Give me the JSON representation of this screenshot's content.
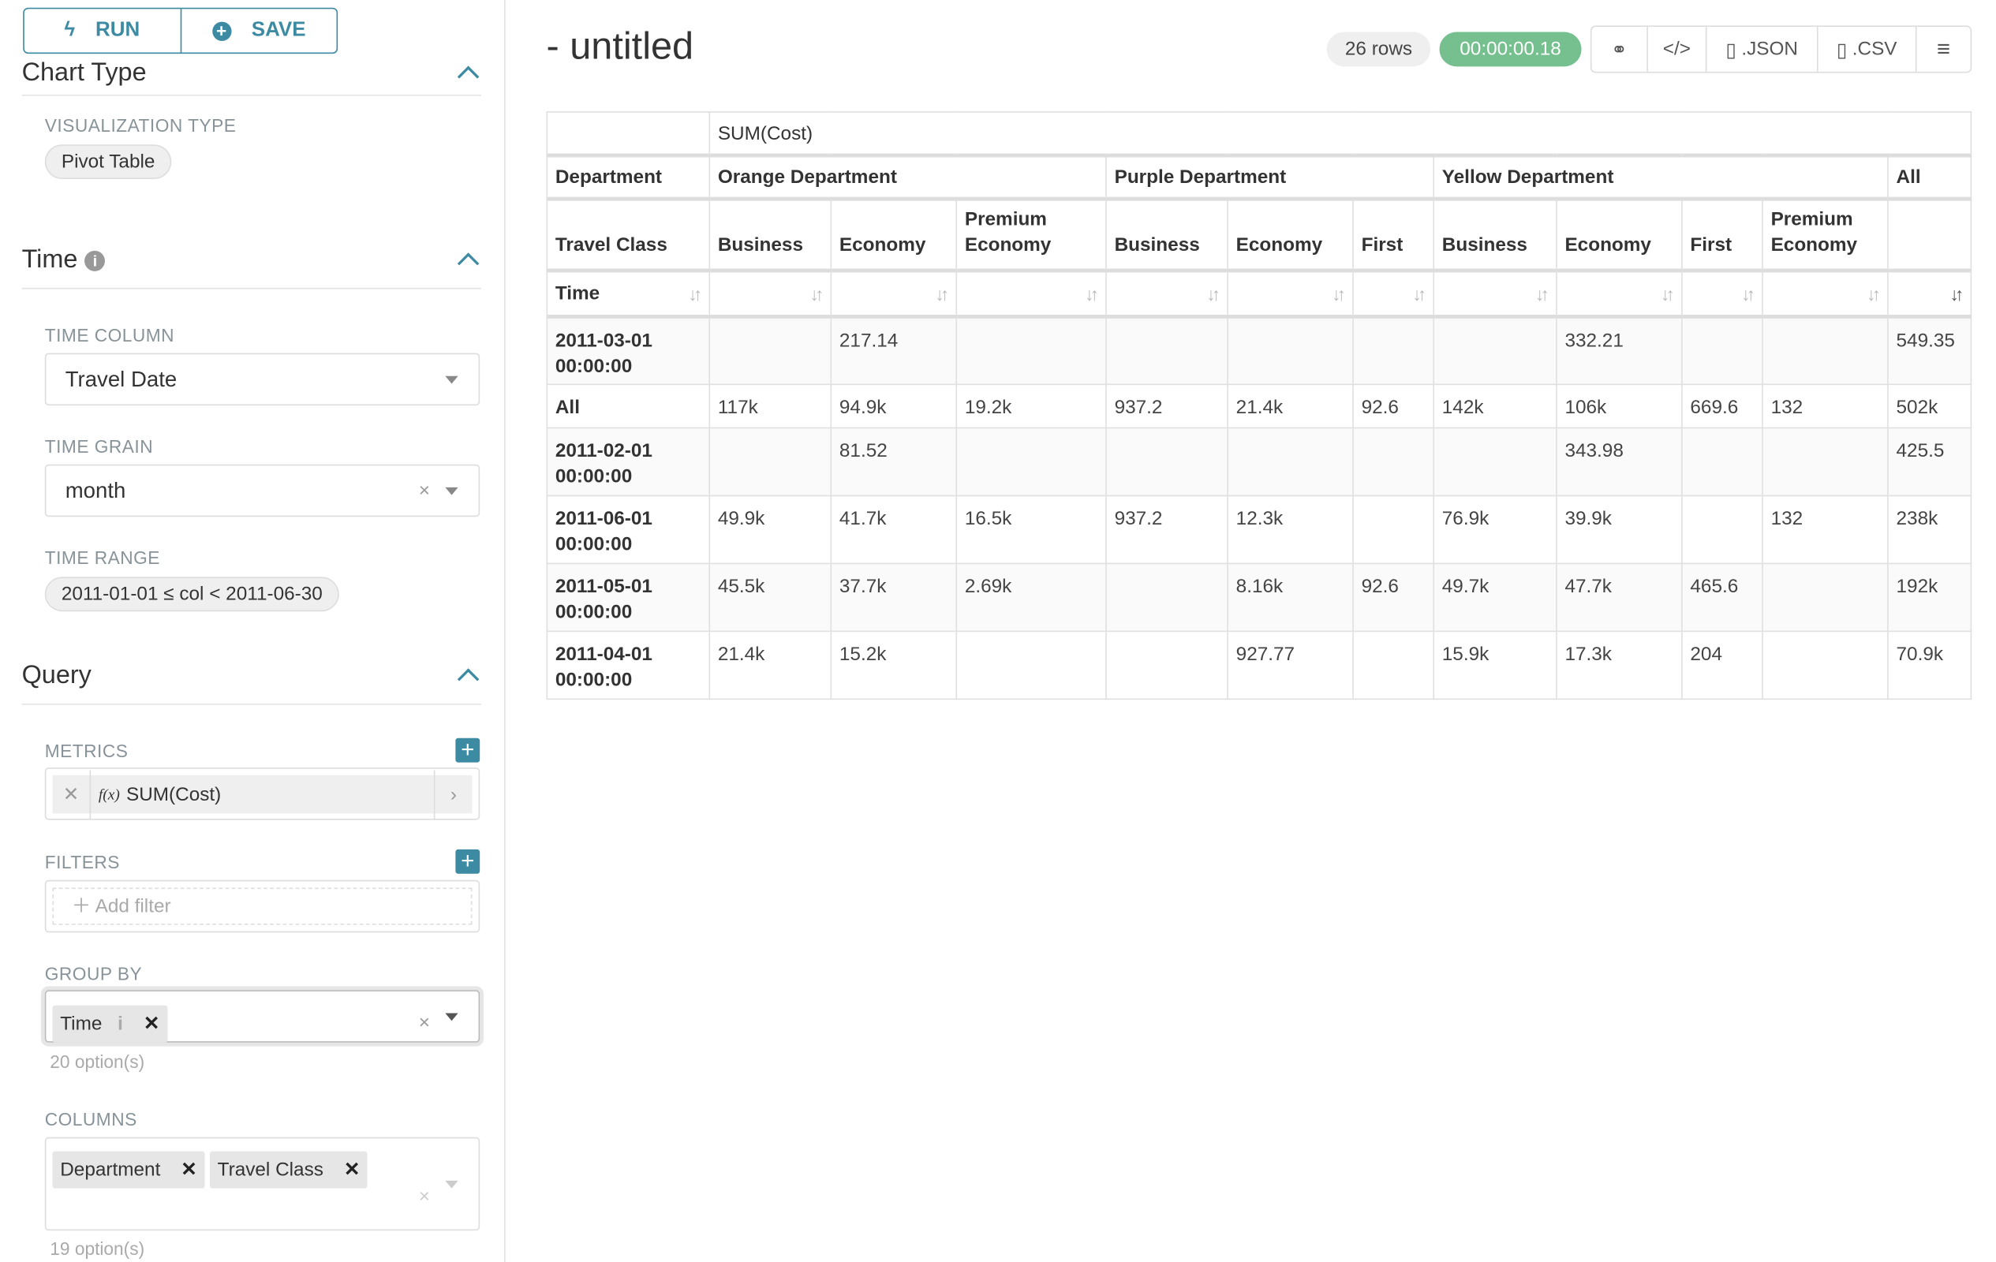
{
  "sidebar": {
    "run_label": "RUN",
    "save_label": "SAVE",
    "chart_type_header": "Chart Type",
    "visualization_type_label": "VISUALIZATION TYPE",
    "visualization_type": "Pivot Table",
    "time_section": "Time",
    "time_column_label": "TIME COLUMN",
    "time_column": "Travel Date",
    "time_grain_label": "TIME GRAIN",
    "time_grain": "month",
    "time_range_label": "TIME RANGE",
    "time_range": "2011-01-01 ≤ col < 2011-06-30",
    "query_section": "Query",
    "metrics_label": "METRICS",
    "metric": "SUM(Cost)",
    "metric_fx": "f(x)",
    "filters_label": "FILTERS",
    "add_filter": "Add filter",
    "group_by_label": "GROUP BY",
    "group_by": [
      "Time"
    ],
    "group_by_options": "20 option(s)",
    "columns_label": "COLUMNS",
    "columns": [
      "Department",
      "Travel Class"
    ],
    "columns_options": "19 option(s)"
  },
  "header": {
    "title": "- untitled",
    "rows": "26 rows",
    "timer": "00:00:00.18",
    "json": ".JSON",
    "csv": ".CSV"
  },
  "colors": {
    "accent": "#3d8aa3",
    "timer": "#75c08e"
  },
  "table": {
    "metric": "SUM(Cost)",
    "dept_label": "Department",
    "class_label": "Travel Class",
    "time_label": "Time",
    "departments": [
      "Orange Department",
      "Purple Department",
      "Yellow Department",
      "All"
    ],
    "classes": [
      "Business",
      "Economy",
      "Premium Economy",
      "Business",
      "Economy",
      "First",
      "Business",
      "Economy",
      "First",
      "Premium Economy",
      ""
    ],
    "rows": [
      {
        "key": "2011-03-01 00:00:00",
        "values": [
          "",
          "217.14",
          "",
          "",
          "",
          "",
          "",
          "332.21",
          "",
          "",
          "549.35"
        ]
      },
      {
        "key": "All",
        "values": [
          "117k",
          "94.9k",
          "19.2k",
          "937.2",
          "21.4k",
          "92.6",
          "142k",
          "106k",
          "669.6",
          "132",
          "502k"
        ]
      },
      {
        "key": "2011-02-01 00:00:00",
        "values": [
          "",
          "81.52",
          "",
          "",
          "",
          "",
          "",
          "343.98",
          "",
          "",
          "425.5"
        ]
      },
      {
        "key": "2011-06-01 00:00:00",
        "values": [
          "49.9k",
          "41.7k",
          "16.5k",
          "937.2",
          "12.3k",
          "",
          "76.9k",
          "39.9k",
          "",
          "132",
          "238k"
        ]
      },
      {
        "key": "2011-05-01 00:00:00",
        "values": [
          "45.5k",
          "37.7k",
          "2.69k",
          "",
          "8.16k",
          "92.6",
          "49.7k",
          "47.7k",
          "465.6",
          "",
          "192k"
        ]
      },
      {
        "key": "2011-04-01 00:00:00",
        "values": [
          "21.4k",
          "15.2k",
          "",
          "",
          "927.77",
          "",
          "15.9k",
          "17.3k",
          "204",
          "",
          "70.9k"
        ]
      }
    ]
  }
}
